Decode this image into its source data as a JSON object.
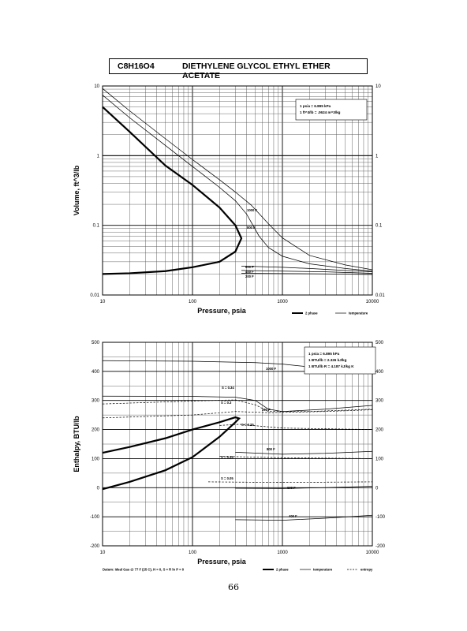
{
  "header": {
    "formula": "C8H16O4",
    "name": "DIETHYLENE GLYCOL ETHYL ETHER ACETATE"
  },
  "page_number": "66",
  "chart_data": [
    {
      "type": "line",
      "x_scale": "log",
      "y_scale": "log",
      "xlabel": "Pressure,  psia",
      "ylabel": "Volume, ft^3/lb",
      "xlim": [
        10,
        10000
      ],
      "ylim": [
        0.01,
        10
      ],
      "x_ticks": [
        "10",
        "100",
        "1000",
        "10000"
      ],
      "y_ticks": [
        "10",
        "1",
        "0.1",
        "0.01"
      ],
      "notes": [
        "1 psia  =  6.895 kPa",
        "1 ft^3/lb  =  .0624 m^3/kg"
      ],
      "legend": [
        {
          "label": "2 phase",
          "style": "thick"
        },
        {
          "label": "temperature",
          "style": "thin"
        }
      ],
      "series": [
        {
          "kind": "2 phase",
          "points": [
            [
              10,
              5
            ],
            [
              20,
              2.2
            ],
            [
              50,
              0.72
            ],
            [
              100,
              0.38
            ],
            [
              200,
              0.18
            ],
            [
              300,
              0.1
            ],
            [
              350,
              0.065
            ],
            [
              300,
              0.042
            ],
            [
              200,
              0.03
            ],
            [
              100,
              0.025
            ],
            [
              50,
              0.022
            ],
            [
              20,
              0.0205
            ],
            [
              10,
              0.02
            ]
          ]
        },
        {
          "name": "1000 F",
          "kind": "temperature",
          "points": [
            [
              10,
              9.2
            ],
            [
              20,
              4.4
            ],
            [
              50,
              1.75
            ],
            [
              100,
              0.88
            ],
            [
              200,
              0.45
            ],
            [
              300,
              0.3
            ],
            [
              450,
              0.195
            ],
            [
              700,
              0.105
            ],
            [
              1000,
              0.066
            ],
            [
              2000,
              0.037
            ],
            [
              5000,
              0.027
            ],
            [
              10000,
              0.023
            ]
          ]
        },
        {
          "name": "800 F",
          "kind": "temperature",
          "points": [
            [
              10,
              7.4
            ],
            [
              20,
              3.5
            ],
            [
              50,
              1.4
            ],
            [
              100,
              0.7
            ],
            [
              200,
              0.35
            ],
            [
              300,
              0.225
            ],
            [
              400,
              0.145
            ],
            [
              550,
              0.07
            ],
            [
              700,
              0.048
            ],
            [
              1000,
              0.036
            ],
            [
              2000,
              0.028
            ],
            [
              5000,
              0.024
            ],
            [
              10000,
              0.022
            ]
          ]
        },
        {
          "name": "600 F",
          "kind": "temperature",
          "points": [
            [
              350,
              0.026
            ],
            [
              600,
              0.0255
            ],
            [
              1000,
              0.025
            ],
            [
              2000,
              0.024
            ],
            [
              5000,
              0.0225
            ],
            [
              10000,
              0.0215
            ]
          ]
        },
        {
          "name": "400 F",
          "kind": "temperature",
          "points": [
            [
              350,
              0.0225
            ],
            [
              1000,
              0.022
            ],
            [
              3000,
              0.0215
            ],
            [
              10000,
              0.0205
            ]
          ]
        },
        {
          "name": "200 F",
          "kind": "temperature",
          "points": [
            [
              350,
              0.0205
            ],
            [
              1000,
              0.0203
            ],
            [
              3000,
              0.0201
            ],
            [
              10000,
              0.0197
            ]
          ]
        }
      ]
    },
    {
      "type": "line",
      "x_scale": "log",
      "y_scale": "linear",
      "xlabel": "Pressure,  psia",
      "ylabel": "Enthalpy, BTU/lb",
      "xlim": [
        10,
        10000
      ],
      "ylim": [
        -200,
        500
      ],
      "x_ticks": [
        "10",
        "100",
        "1000",
        "10000"
      ],
      "y_ticks": [
        "500",
        "400",
        "300",
        "200",
        "100",
        "0",
        "-100",
        "-200"
      ],
      "notes": [
        "1 psia  =  6.895 kPa",
        "1 BTU/lb  =  2.326 kJ/kg",
        "1 BTU/lb R  =  4.187 kJ/kg K"
      ],
      "footnote": "Datum: Ideal Gas @ 77 F (25 C),  H = 0,  S = R ln P = 0",
      "legend": [
        {
          "label": "2 phase",
          "style": "thick"
        },
        {
          "label": "temperature",
          "style": "thin"
        },
        {
          "label": "entropy",
          "style": "dashed"
        }
      ],
      "series": [
        {
          "kind": "2 phase",
          "points": [
            [
              10,
              -5
            ],
            [
              20,
              20
            ],
            [
              50,
              60
            ],
            [
              100,
              105
            ],
            [
              200,
              175
            ],
            [
              300,
              225
            ],
            [
              330,
              238
            ],
            [
              300,
              242
            ],
            [
              200,
              225
            ],
            [
              100,
              200
            ],
            [
              50,
              170
            ],
            [
              20,
              140
            ],
            [
              10,
              120
            ]
          ]
        },
        {
          "name": "1000 F",
          "kind": "temperature",
          "points": [
            [
              10,
              437
            ],
            [
              100,
              435
            ],
            [
              500,
              430
            ],
            [
              1000,
              425
            ],
            [
              3000,
              410
            ],
            [
              10000,
              395
            ]
          ]
        },
        {
          "name": "800 F",
          "kind": "temperature",
          "points": [
            [
              10,
              315
            ],
            [
              100,
              314
            ],
            [
              300,
              311
            ],
            [
              500,
              300
            ],
            [
              700,
              270
            ],
            [
              1000,
              262
            ],
            [
              3000,
              270
            ],
            [
              10000,
              283
            ]
          ]
        },
        {
          "name": "600 F",
          "kind": "temperature",
          "points": [
            [
              300,
              122
            ],
            [
              1000,
              115
            ],
            [
              3000,
              118
            ],
            [
              10000,
              125
            ]
          ]
        },
        {
          "name": "400 F",
          "kind": "temperature",
          "points": [
            [
              300,
              -2
            ],
            [
              1000,
              -3
            ],
            [
              3000,
              0
            ],
            [
              10000,
              5
            ]
          ]
        },
        {
          "name": "200 F",
          "kind": "temperature",
          "points": [
            [
              300,
              -110
            ],
            [
              1000,
              -112
            ],
            [
              3000,
              -105
            ],
            [
              10000,
              -95
            ]
          ]
        },
        {
          "name": "S = 0.34",
          "kind": "entropy",
          "points": [
            [
              10,
              288
            ],
            [
              100,
              298
            ],
            [
              300,
              302
            ],
            [
              500,
              285
            ],
            [
              700,
              262
            ],
            [
              2000,
              262
            ],
            [
              10000,
              270
            ]
          ]
        },
        {
          "name": "S = 0.3",
          "kind": "entropy",
          "points": [
            [
              10,
              240
            ],
            [
              100,
              250
            ],
            [
              300,
              262
            ],
            [
              700,
              258
            ],
            [
              3000,
              262
            ],
            [
              10000,
              268
            ]
          ]
        },
        {
          "name": "S = 0.25",
          "kind": "entropy",
          "points": [
            [
              200,
              214
            ],
            [
              330,
              218
            ],
            [
              1000,
              205
            ],
            [
              10000,
              200
            ]
          ]
        },
        {
          "name": "S = 0.15",
          "kind": "entropy",
          "points": [
            [
              200,
              108
            ],
            [
              1000,
              103
            ],
            [
              10000,
              100
            ]
          ]
        },
        {
          "name": "S = 0.05",
          "kind": "entropy",
          "points": [
            [
              150,
              20
            ],
            [
              1000,
              18
            ],
            [
              10000,
              20
            ]
          ]
        }
      ]
    }
  ]
}
